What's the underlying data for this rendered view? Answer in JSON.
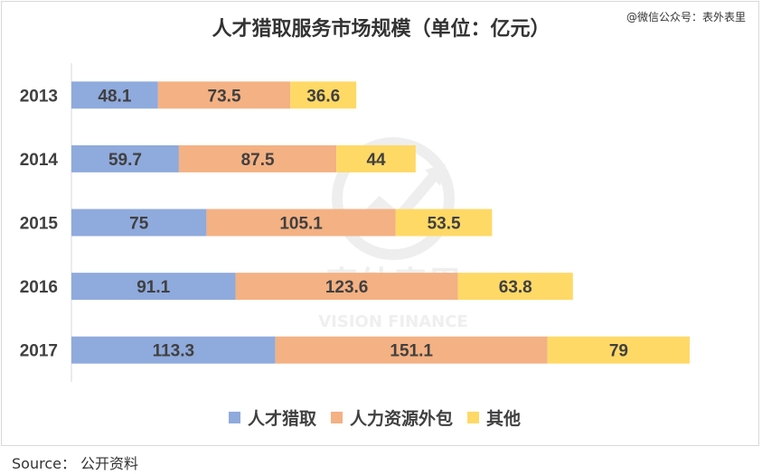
{
  "header": {
    "title": "人才猎取服务市场规模（单位：亿元）",
    "watermark_credit": "@微信公众号：表外表里"
  },
  "footer": {
    "source": "Source：  公开资料"
  },
  "watermark": {
    "cn": "表外表里",
    "en": "VISION FINANCE"
  },
  "chart_data": {
    "type": "bar",
    "orientation": "horizontal",
    "stacked": true,
    "title": "人才猎取服务市场规模（单位：亿元）",
    "categories": [
      "2013",
      "2014",
      "2015",
      "2016",
      "2017"
    ],
    "series": [
      {
        "name": "人才猎取",
        "values": [
          48.1,
          59.7,
          75,
          91.1,
          113.3
        ],
        "color": "#8faadc"
      },
      {
        "name": "人力资源外包",
        "values": [
          73.5,
          87.5,
          105.1,
          123.6,
          151.1
        ],
        "color": "#f4b183"
      },
      {
        "name": "其他",
        "values": [
          36.6,
          44,
          53.5,
          63.8,
          79
        ],
        "color": "#ffd966"
      }
    ],
    "xlim": [
      0,
      380
    ],
    "grid": false,
    "legend": "bottom"
  }
}
